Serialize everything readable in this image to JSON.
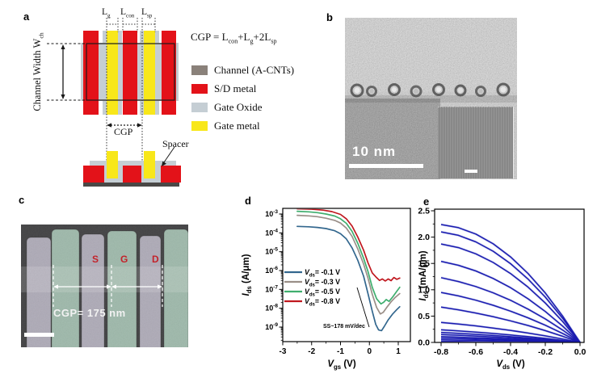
{
  "panels": {
    "a": {
      "letter": "a",
      "dims": [
        {
          "base": "L",
          "sub": "g"
        },
        {
          "base": "L",
          "sub": "con"
        },
        {
          "base": "L",
          "sub": "sp"
        }
      ],
      "channel_width": {
        "base": "Channel Width W",
        "sub": "ch"
      },
      "formula": {
        "p0": "CGP = L",
        "p1": "con",
        "p2": "+L",
        "p3": "g",
        "p4": "+2L",
        "p5": "sp"
      },
      "cgp": "CGP",
      "spacer": "Spacer",
      "legend": [
        {
          "label": "Channel (A-CNTs)",
          "color": "#8a817a"
        },
        {
          "label": "S/D metal",
          "color": "#e31219"
        },
        {
          "label": "Gate Oxide",
          "color": "#c5ced4"
        },
        {
          "label": "Gate metal",
          "color": "#f8e71a"
        }
      ]
    },
    "b": {
      "letter": "b",
      "scale_bar": "10 nm"
    },
    "c": {
      "letter": "c",
      "terminals": [
        "S",
        "G",
        "D"
      ],
      "cgp_text": "CGP= 175 nm"
    },
    "d": {
      "letter": "d"
    },
    "e": {
      "letter": "e"
    }
  },
  "chart_data": [
    {
      "id": "transfer_curves",
      "type": "line",
      "x_axis": {
        "label": {
          "base": "V",
          "sub": "gs",
          "rest": " (V)"
        },
        "ticks": [
          "-3",
          "-2",
          "-1",
          "0",
          "1"
        ],
        "range": [
          -3,
          1.42
        ]
      },
      "y_axis": {
        "label": {
          "base": "I",
          "sub": "ds",
          "rest": " (A/μm)"
        },
        "scale": "log",
        "tick_exponents": [
          -3,
          -4,
          -5,
          -6,
          -7,
          -8,
          -9
        ],
        "range_log": [
          -9.77,
          -2.7
        ]
      },
      "annotation": {
        "text": "SS~178 mV/dec"
      },
      "series": [
        {
          "legend": {
            "base": "V",
            "sub": "ds",
            "rest": "= -0.1 V"
          },
          "color": "#33678e",
          "points": [
            [
              -2.5,
              0.00022
            ],
            [
              -2.1,
              0.00021
            ],
            [
              -1.8,
              0.000195
            ],
            [
              -1.5,
              0.00017
            ],
            [
              -1.2,
              0.00013
            ],
            [
              -1.0,
              9e-05
            ],
            [
              -0.8,
              4.8e-05
            ],
            [
              -0.6,
              1.6e-05
            ],
            [
              -0.4,
              3.5e-06
            ],
            [
              -0.2,
              5e-07
            ],
            [
              -0.05,
              6e-08
            ],
            [
              0.1,
              7e-09
            ],
            [
              0.22,
              1.4e-09
            ],
            [
              0.32,
              7e-10
            ],
            [
              0.42,
              6.5e-10
            ],
            [
              0.52,
              1.1e-09
            ],
            [
              0.65,
              2.4e-09
            ],
            [
              0.8,
              4.8e-09
            ],
            [
              0.95,
              8.5e-09
            ],
            [
              1.05,
              1.2e-08
            ]
          ]
        },
        {
          "legend": {
            "base": "V",
            "sub": "ds",
            "rest": "= -0.3 V"
          },
          "color": "#9a8f88",
          "points": [
            [
              -2.5,
              0.00085
            ],
            [
              -2.1,
              0.0008
            ],
            [
              -1.8,
              0.00072
            ],
            [
              -1.5,
              0.0006
            ],
            [
              -1.2,
              0.00046
            ],
            [
              -1.0,
              0.00033
            ],
            [
              -0.8,
              0.00018
            ],
            [
              -0.6,
              6.5e-05
            ],
            [
              -0.4,
              1.4e-05
            ],
            [
              -0.2,
              2.2e-06
            ],
            [
              -0.05,
              4e-07
            ],
            [
              0.1,
              5.5e-08
            ],
            [
              0.25,
              1.1e-08
            ],
            [
              0.38,
              5e-09
            ],
            [
              0.48,
              6e-09
            ],
            [
              0.6,
              1.1e-08
            ],
            [
              0.75,
              2.2e-08
            ],
            [
              0.9,
              3.8e-08
            ],
            [
              1.05,
              6e-08
            ]
          ]
        },
        {
          "legend": {
            "base": "V",
            "sub": "ds",
            "rest": "= -0.5 V"
          },
          "color": "#3fae6e",
          "points": [
            [
              -2.5,
              0.0014
            ],
            [
              -2.1,
              0.0013
            ],
            [
              -1.8,
              0.00118
            ],
            [
              -1.5,
              0.001
            ],
            [
              -1.2,
              0.00078
            ],
            [
              -1.0,
              0.00056
            ],
            [
              -0.8,
              0.00032
            ],
            [
              -0.6,
              0.00012
            ],
            [
              -0.4,
              2.8e-05
            ],
            [
              -0.2,
              4.5e-06
            ],
            [
              -0.05,
              9e-07
            ],
            [
              0.1,
              1.3e-07
            ],
            [
              0.25,
              3.2e-08
            ],
            [
              0.4,
              1.7e-08
            ],
            [
              0.5,
              2.1e-08
            ],
            [
              0.58,
              2.9e-08
            ],
            [
              0.68,
              2.3e-08
            ],
            [
              0.8,
              3.8e-08
            ],
            [
              0.95,
              8e-08
            ],
            [
              1.05,
              1.3e-07
            ]
          ]
        },
        {
          "legend": {
            "base": "V",
            "sub": "ds",
            "rest": "= -0.8 V"
          },
          "color": "#c0181f",
          "points": [
            [
              -2.5,
              0.0019
            ],
            [
              -2.0,
              0.0018
            ],
            [
              -1.6,
              0.0016
            ],
            [
              -1.3,
              0.00135
            ],
            [
              -1.0,
              0.00095
            ],
            [
              -0.8,
              0.00056
            ],
            [
              -0.6,
              0.00023
            ],
            [
              -0.4,
              6e-05
            ],
            [
              -0.2,
              1.2e-05
            ],
            [
              -0.05,
              2.6e-06
            ],
            [
              0.1,
              7.5e-07
            ],
            [
              0.25,
              4.2e-07
            ],
            [
              0.35,
              3e-07
            ],
            [
              0.45,
              3.6e-07
            ],
            [
              0.55,
              2.8e-07
            ],
            [
              0.65,
              3.6e-07
            ],
            [
              0.75,
              2.9e-07
            ],
            [
              0.85,
              4.3e-07
            ],
            [
              0.95,
              3.4e-07
            ],
            [
              1.05,
              4e-07
            ]
          ]
        }
      ]
    },
    {
      "id": "output_curves",
      "type": "line",
      "x_axis": {
        "label": {
          "base": "V",
          "sub": "ds",
          "rest": " (V)"
        },
        "ticks": [
          "-0.8",
          "-0.6",
          "-0.4",
          "-0.2",
          "0.0"
        ],
        "range": [
          -0.837,
          0.023
        ]
      },
      "y_axis": {
        "label": {
          "base": "I",
          "sub": "ds",
          "rest": " (mA/μm)"
        },
        "ticks": [
          "0.0",
          "0.5",
          "1.0",
          "1.5",
          "2.0",
          "2.5"
        ],
        "range": [
          0,
          2.53
        ]
      },
      "color": "#1b1bb0",
      "halo_color": "#9aa6e0",
      "x": [
        0,
        -0.1,
        -0.2,
        -0.3,
        -0.4,
        -0.5,
        -0.6,
        -0.7,
        -0.8
      ],
      "series": [
        {
          "values": [
            0,
            0.5,
            0.938,
            1.312,
            1.624,
            1.872,
            2.058,
            2.18,
            2.24
          ]
        },
        {
          "values": [
            0,
            0.458,
            0.86,
            1.206,
            1.496,
            1.731,
            1.91,
            2.033,
            2.1
          ]
        },
        {
          "values": [
            0,
            0.397,
            0.748,
            1.052,
            1.309,
            1.519,
            1.683,
            1.8,
            1.87
          ]
        },
        {
          "values": [
            0,
            0.31,
            0.587,
            0.83,
            1.04,
            1.215,
            1.357,
            1.465,
            1.54
          ]
        },
        {
          "values": [
            0,
            0.234,
            0.446,
            0.634,
            0.8,
            0.942,
            1.061,
            1.157,
            1.23
          ]
        },
        {
          "values": [
            0,
            0.171,
            0.327,
            0.468,
            0.594,
            0.705,
            0.802,
            0.883,
            0.95
          ]
        },
        {
          "values": [
            0,
            0.117,
            0.224,
            0.322,
            0.41,
            0.489,
            0.559,
            0.619,
            0.67
          ]
        },
        {
          "values": [
            0,
            0.064,
            0.124,
            0.178,
            0.228,
            0.273,
            0.314,
            0.349,
            0.38
          ]
        },
        {
          "values": [
            0,
            0.039,
            0.076,
            0.11,
            0.141,
            0.17,
            0.196,
            0.219,
            0.24
          ]
        },
        {
          "values": [
            0,
            0.03,
            0.058,
            0.085,
            0.109,
            0.132,
            0.153,
            0.172,
            0.19
          ]
        },
        {
          "values": [
            0,
            0.024,
            0.046,
            0.067,
            0.086,
            0.104,
            0.121,
            0.136,
            0.15
          ]
        },
        {
          "values": [
            0,
            0.017,
            0.034,
            0.049,
            0.063,
            0.077,
            0.089,
            0.1,
            0.11
          ]
        },
        {
          "values": [
            0,
            0.013,
            0.024,
            0.036,
            0.046,
            0.056,
            0.065,
            0.073,
            0.08
          ]
        },
        {
          "values": [
            0,
            0.008,
            0.015,
            0.022,
            0.029,
            0.035,
            0.041,
            0.045,
            0.05
          ]
        },
        {
          "values": [
            0,
            0.003,
            0.006,
            0.009,
            0.012,
            0.014,
            0.016,
            0.018,
            0.02
          ]
        }
      ]
    }
  ]
}
